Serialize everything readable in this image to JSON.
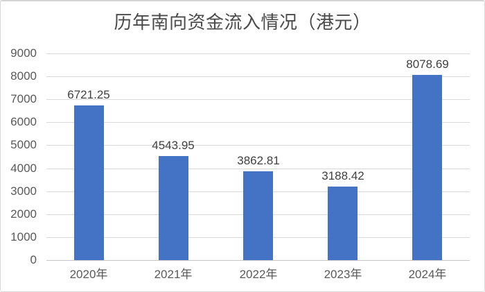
{
  "chart_data": {
    "type": "bar",
    "title": "历年南向资金流入情况（港元）",
    "categories": [
      "2020年",
      "2021年",
      "2022年",
      "2023年",
      "2024年"
    ],
    "values": [
      6721.25,
      4543.95,
      3862.81,
      3188.42,
      8078.69
    ],
    "data_labels": [
      "6721.25",
      "4543.95",
      "3862.81",
      "3188.42",
      "8078.69"
    ],
    "xlabel": "",
    "ylabel": "",
    "ylim": [
      0,
      9000
    ],
    "ytick_interval": 1000,
    "ytick_labels": [
      "0",
      "1000",
      "2000",
      "3000",
      "4000",
      "5000",
      "6000",
      "7000",
      "8000",
      "9000"
    ],
    "grid": true,
    "legend_position": "none",
    "bar_color": "#4472C4",
    "gridline_color": "#D9D9D9",
    "title_color": "#4A4A4A",
    "axis_label_color": "#595959",
    "value_label_color": "#404040",
    "background_color": "#FFFFFF"
  }
}
